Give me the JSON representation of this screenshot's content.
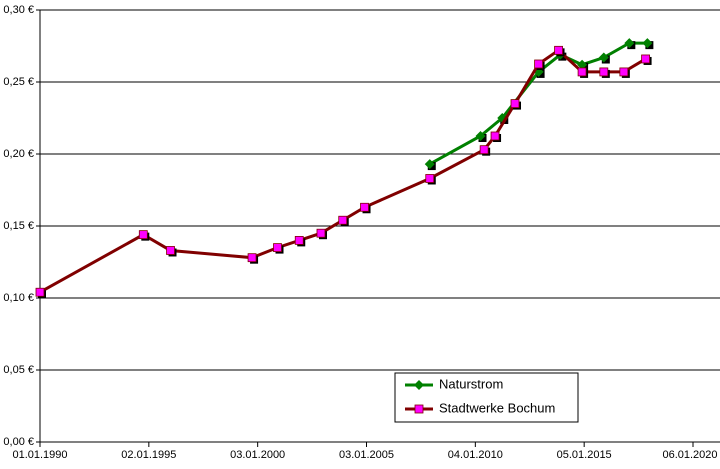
{
  "chart_data": {
    "type": "line",
    "xlim": [
      "01.01.1990",
      "06.01.2020"
    ],
    "xticks": [
      "01.01.1990",
      "02.01.1995",
      "03.01.2000",
      "03.01.2005",
      "04.01.2010",
      "05.01.2015",
      "06.01.2020"
    ],
    "ylim": [
      0,
      0.3
    ],
    "yticks": [
      {
        "value": 0,
        "label": "0,00 €"
      },
      {
        "value": 0.05,
        "label": "0,05 €"
      },
      {
        "value": 0.1,
        "label": "0,10 €"
      },
      {
        "value": 0.15,
        "label": "0,15 €"
      },
      {
        "value": 0.2,
        "label": "0,20 €"
      },
      {
        "value": 0.25,
        "label": "0,25 €"
      },
      {
        "value": 0.3,
        "label": "0,30 €"
      }
    ],
    "grid": true,
    "legend": "lower right",
    "series": [
      {
        "name": "Naturstrom",
        "color": "#008000",
        "marker_color": "#008000",
        "x": [
          "01.12.2007",
          "01.04.2010",
          "01.04.2011",
          "01.12.2012",
          "01.12.2013",
          "01.12.2014",
          "01.12.2015",
          "01.02.2017",
          "01.12.2017"
        ],
        "values": [
          0.193,
          0.2125,
          0.225,
          0.257,
          0.269,
          0.262,
          0.267,
          0.277,
          0.277
        ]
      },
      {
        "name": "Stadtwerke Bochum",
        "color": "#800000",
        "marker_color": "#ff00ff",
        "x": [
          "01.01.1990",
          "01.10.1994",
          "01.01.1996",
          "01.10.1999",
          "01.12.2000",
          "01.12.2001",
          "01.12.2002",
          "01.12.2003",
          "01.12.2004",
          "01.12.2007",
          "01.06.2010",
          "01.12.2010",
          "01.11.2011",
          "01.12.2012",
          "01.11.2013",
          "01.12.2014",
          "01.12.2015",
          "01.11.2016",
          "01.11.2017"
        ],
        "values": [
          0.104,
          0.144,
          0.133,
          0.128,
          0.135,
          0.14,
          0.145,
          0.154,
          0.163,
          0.183,
          0.203,
          0.2125,
          0.235,
          0.2625,
          0.272,
          0.257,
          0.257,
          0.257,
          0.266
        ]
      }
    ]
  }
}
